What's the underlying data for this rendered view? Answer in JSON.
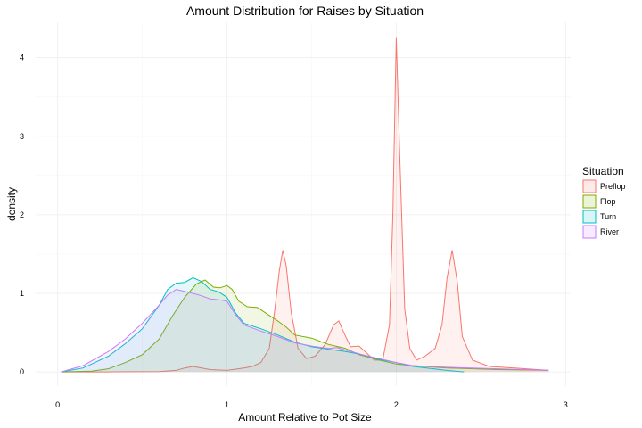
{
  "chart_data": {
    "type": "area",
    "title": "Amount Distribution for Raises by Situation",
    "xlabel": "Amount Relative to Pot Size",
    "ylabel": "density",
    "xlim": [
      -0.13,
      3.03
    ],
    "ylim": [
      -0.18,
      4.45
    ],
    "x_ticks": [
      "0",
      "1",
      "2",
      "3"
    ],
    "y_ticks": [
      "0",
      "1",
      "2",
      "3",
      "4"
    ],
    "grid": true,
    "legend_position": "right",
    "legend_title": "Situation",
    "series": [
      {
        "name": "Preflop",
        "color": "#F8766D",
        "points": [
          [
            0.02,
            0
          ],
          [
            0.3,
            0
          ],
          [
            0.6,
            0.005
          ],
          [
            0.7,
            0.02
          ],
          [
            0.75,
            0.05
          ],
          [
            0.8,
            0.07
          ],
          [
            0.85,
            0.05
          ],
          [
            0.9,
            0.03
          ],
          [
            1.0,
            0.02
          ],
          [
            1.1,
            0.05
          ],
          [
            1.15,
            0.07
          ],
          [
            1.2,
            0.12
          ],
          [
            1.25,
            0.3
          ],
          [
            1.28,
            0.75
          ],
          [
            1.31,
            1.3
          ],
          [
            1.33,
            1.55
          ],
          [
            1.35,
            1.35
          ],
          [
            1.38,
            0.75
          ],
          [
            1.42,
            0.3
          ],
          [
            1.47,
            0.17
          ],
          [
            1.52,
            0.2
          ],
          [
            1.58,
            0.35
          ],
          [
            1.63,
            0.6
          ],
          [
            1.66,
            0.65
          ],
          [
            1.69,
            0.5
          ],
          [
            1.73,
            0.32
          ],
          [
            1.78,
            0.33
          ],
          [
            1.82,
            0.25
          ],
          [
            1.87,
            0.15
          ],
          [
            1.92,
            0.15
          ],
          [
            1.96,
            0.6
          ],
          [
            1.98,
            2.0
          ],
          [
            2.0,
            4.25
          ],
          [
            2.02,
            2.8
          ],
          [
            2.05,
            0.8
          ],
          [
            2.08,
            0.3
          ],
          [
            2.12,
            0.15
          ],
          [
            2.17,
            0.2
          ],
          [
            2.23,
            0.3
          ],
          [
            2.27,
            0.6
          ],
          [
            2.3,
            1.2
          ],
          [
            2.33,
            1.55
          ],
          [
            2.36,
            1.15
          ],
          [
            2.39,
            0.45
          ],
          [
            2.45,
            0.15
          ],
          [
            2.55,
            0.07
          ],
          [
            2.7,
            0.05
          ],
          [
            2.9,
            0.02
          ]
        ]
      },
      {
        "name": "Flop",
        "color": "#7CAE00",
        "points": [
          [
            0.02,
            0
          ],
          [
            0.2,
            0.01
          ],
          [
            0.3,
            0.04
          ],
          [
            0.4,
            0.12
          ],
          [
            0.5,
            0.22
          ],
          [
            0.6,
            0.42
          ],
          [
            0.68,
            0.72
          ],
          [
            0.75,
            0.95
          ],
          [
            0.82,
            1.12
          ],
          [
            0.87,
            1.17
          ],
          [
            0.92,
            1.08
          ],
          [
            0.96,
            1.07
          ],
          [
            1.0,
            1.1
          ],
          [
            1.03,
            1.05
          ],
          [
            1.07,
            0.9
          ],
          [
            1.12,
            0.83
          ],
          [
            1.18,
            0.82
          ],
          [
            1.25,
            0.72
          ],
          [
            1.3,
            0.65
          ],
          [
            1.35,
            0.57
          ],
          [
            1.4,
            0.47
          ],
          [
            1.5,
            0.43
          ],
          [
            1.6,
            0.35
          ],
          [
            1.7,
            0.3
          ],
          [
            1.78,
            0.22
          ],
          [
            1.9,
            0.15
          ],
          [
            2.0,
            0.1
          ],
          [
            2.1,
            0.08
          ],
          [
            2.3,
            0.05
          ],
          [
            2.6,
            0.03
          ],
          [
            2.9,
            0.02
          ]
        ]
      },
      {
        "name": "Turn",
        "color": "#00BFC4",
        "points": [
          [
            0.02,
            0
          ],
          [
            0.15,
            0.05
          ],
          [
            0.3,
            0.2
          ],
          [
            0.4,
            0.36
          ],
          [
            0.5,
            0.55
          ],
          [
            0.6,
            0.85
          ],
          [
            0.65,
            1.05
          ],
          [
            0.7,
            1.13
          ],
          [
            0.75,
            1.14
          ],
          [
            0.8,
            1.2
          ],
          [
            0.85,
            1.15
          ],
          [
            0.9,
            1.05
          ],
          [
            0.95,
            1.02
          ],
          [
            1.0,
            0.95
          ],
          [
            1.05,
            0.75
          ],
          [
            1.1,
            0.62
          ],
          [
            1.2,
            0.55
          ],
          [
            1.3,
            0.47
          ],
          [
            1.4,
            0.38
          ],
          [
            1.5,
            0.32
          ],
          [
            1.6,
            0.29
          ],
          [
            1.7,
            0.26
          ],
          [
            1.8,
            0.22
          ],
          [
            1.9,
            0.16
          ],
          [
            2.0,
            0.12
          ],
          [
            2.1,
            0.07
          ],
          [
            2.3,
            0.02
          ],
          [
            2.4,
            0
          ]
        ]
      },
      {
        "name": "River",
        "color": "#C77CFF",
        "points": [
          [
            0.02,
            0
          ],
          [
            0.15,
            0.08
          ],
          [
            0.3,
            0.26
          ],
          [
            0.4,
            0.42
          ],
          [
            0.5,
            0.62
          ],
          [
            0.6,
            0.85
          ],
          [
            0.65,
            0.98
          ],
          [
            0.7,
            1.05
          ],
          [
            0.78,
            1.01
          ],
          [
            0.85,
            0.97
          ],
          [
            0.9,
            0.93
          ],
          [
            0.95,
            0.92
          ],
          [
            1.0,
            0.9
          ],
          [
            1.05,
            0.73
          ],
          [
            1.1,
            0.6
          ],
          [
            1.2,
            0.52
          ],
          [
            1.3,
            0.45
          ],
          [
            1.4,
            0.37
          ],
          [
            1.5,
            0.33
          ],
          [
            1.6,
            0.3
          ],
          [
            1.65,
            0.31
          ],
          [
            1.7,
            0.28
          ],
          [
            1.8,
            0.22
          ],
          [
            1.9,
            0.17
          ],
          [
            2.0,
            0.12
          ],
          [
            2.1,
            0.08
          ],
          [
            2.3,
            0.06
          ],
          [
            2.6,
            0.04
          ],
          [
            2.9,
            0.02
          ]
        ]
      }
    ]
  }
}
